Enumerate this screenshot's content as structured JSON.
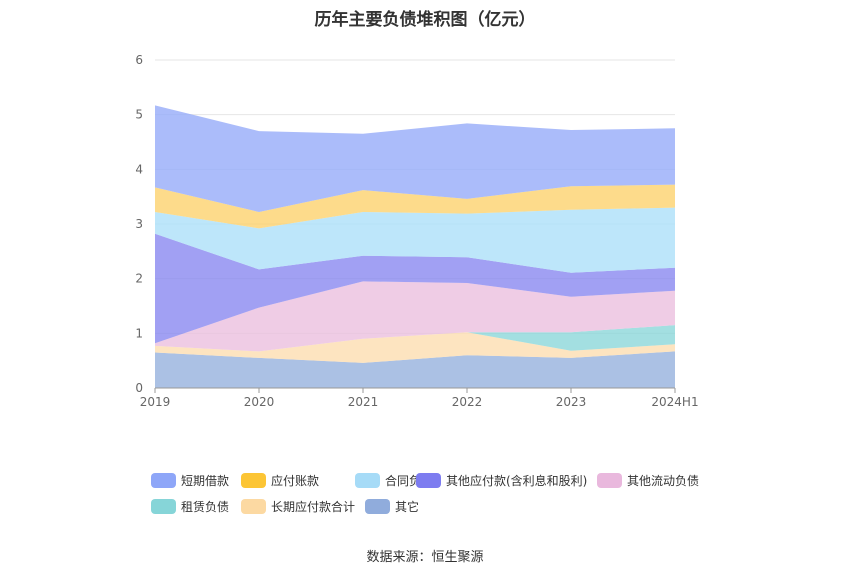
{
  "chart_data": {
    "type": "area",
    "stacked": true,
    "title": "历年主要负债堆积图（亿元）",
    "categories": [
      "2019",
      "2020",
      "2021",
      "2022",
      "2023",
      "2024H1"
    ],
    "y_ticks": [
      "0",
      "1",
      "2",
      "3",
      "4",
      "5",
      "6"
    ],
    "ylim": [
      0,
      6
    ],
    "grid": "horizontal",
    "legend_position": "bottom",
    "series": [
      {
        "name": "其它",
        "color": "#94b0dc",
        "values": [
          0.65,
          0.55,
          0.46,
          0.6,
          0.55,
          0.67
        ]
      },
      {
        "name": "长期应付款合计",
        "color": "#fcdcae",
        "values": [
          0.12,
          0.12,
          0.44,
          0.42,
          0.13,
          0.13
        ]
      },
      {
        "name": "租赁负债",
        "color": "#89d6d9",
        "values": [
          0.0,
          0.0,
          0.0,
          0.0,
          0.34,
          0.35
        ]
      },
      {
        "name": "其他流动负债",
        "color": "#eabede",
        "values": [
          0.05,
          0.8,
          1.05,
          0.9,
          0.65,
          0.63
        ]
      },
      {
        "name": "其他应付款(含利息和股利)",
        "color": "#8785f0",
        "values": [
          2.0,
          0.7,
          0.47,
          0.47,
          0.44,
          0.42
        ]
      },
      {
        "name": "合同负债",
        "color": "#aadff8",
        "values": [
          0.4,
          0.75,
          0.8,
          0.8,
          1.15,
          1.1
        ]
      },
      {
        "name": "应付账款",
        "color": "#fdd16a",
        "values": [
          0.45,
          0.3,
          0.4,
          0.27,
          0.43,
          0.42
        ]
      },
      {
        "name": "短期借款",
        "color": "#93a9f9",
        "values": [
          1.5,
          1.48,
          1.03,
          1.38,
          1.03,
          1.03
        ]
      }
    ]
  },
  "legend": {
    "items": [
      {
        "label": "短期借款",
        "color": "#8ea6f8"
      },
      {
        "label": "应付账款",
        "color": "#fcc535"
      },
      {
        "label": "合同负债",
        "color": "#a6dbf7"
      },
      {
        "label": "其他应付款(含利息和股利)",
        "color": "#7d7cf0"
      },
      {
        "label": "其他流动负债",
        "color": "#e9b8dd"
      },
      {
        "label": "租赁负债",
        "color": "#86d5d8"
      },
      {
        "label": "长期应付款合计",
        "color": "#fcd9a2"
      },
      {
        "label": "其它",
        "color": "#90acdc"
      }
    ]
  },
  "source": "数据来源：恒生聚源"
}
